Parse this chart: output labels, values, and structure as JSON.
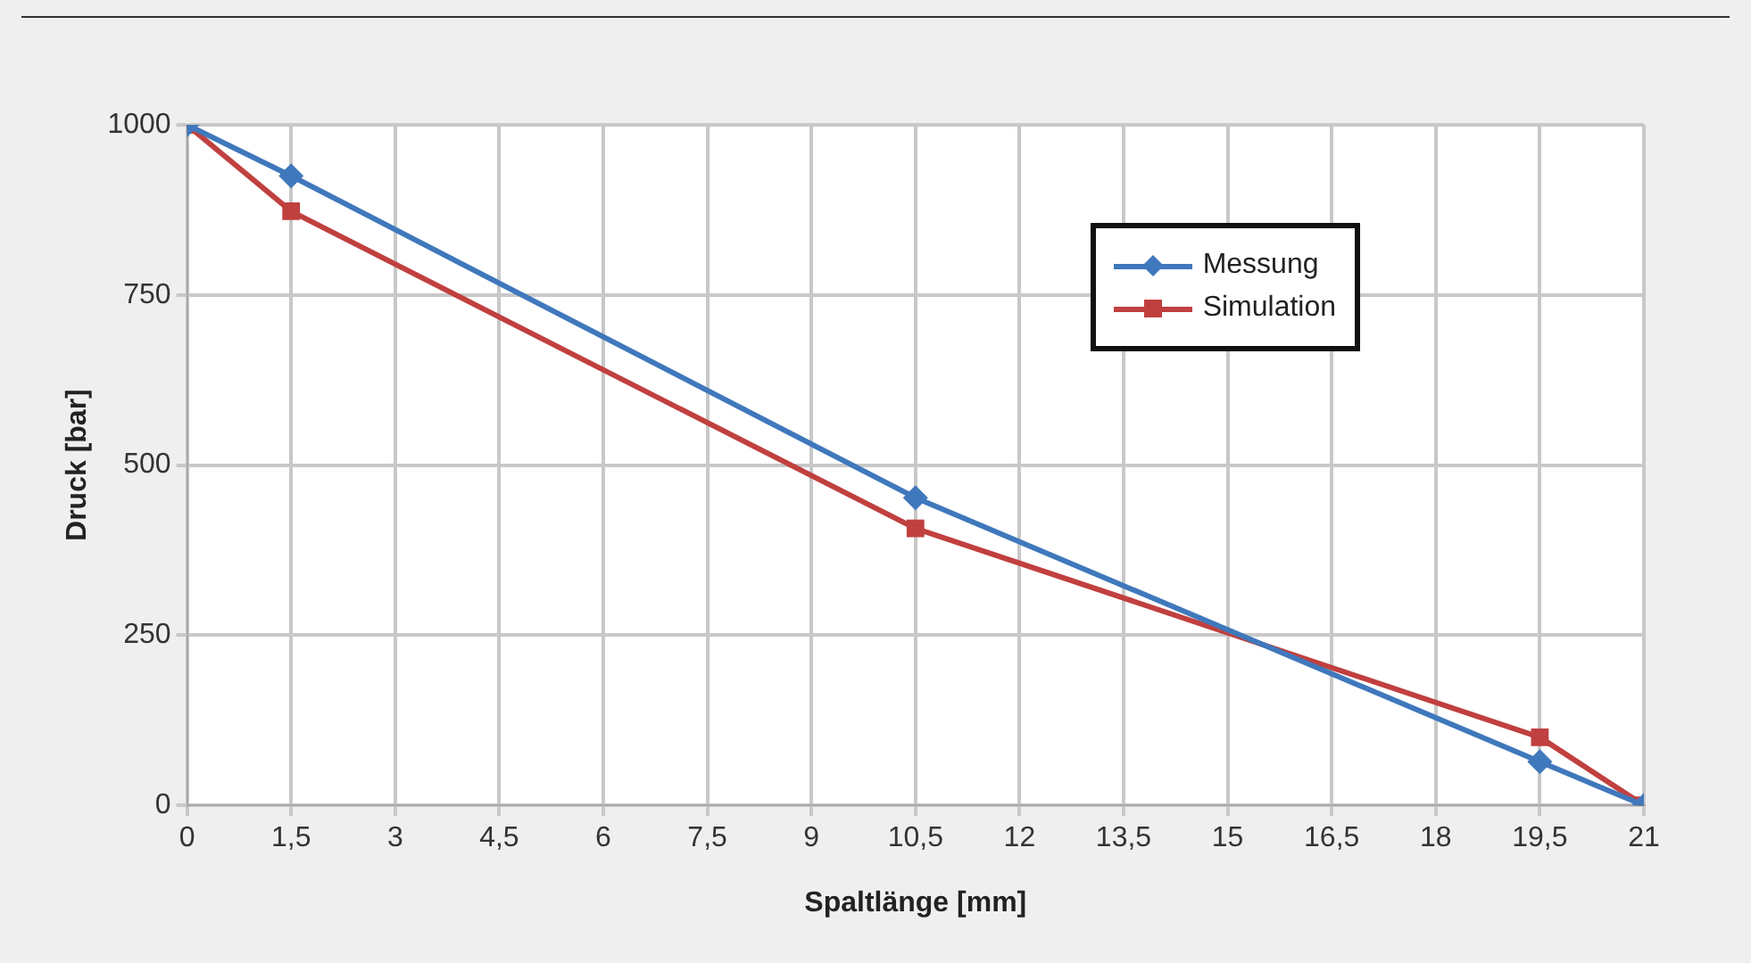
{
  "chart_data": {
    "type": "line",
    "xlabel": "Spaltlänge [mm]",
    "ylabel": "Druck [bar]",
    "xlim": [
      0,
      21
    ],
    "xticks": [
      0,
      {
        "value": 1.5,
        "label": "1,5"
      },
      3,
      {
        "value": 4.5,
        "label": "4,5"
      },
      6,
      {
        "value": 7.5,
        "label": "7,5"
      },
      9,
      {
        "value": 10.5,
        "label": "10,5"
      },
      12,
      {
        "value": 13.5,
        "label": "13,5"
      },
      15,
      {
        "value": 16.5,
        "label": "16,5"
      },
      18,
      {
        "value": 19.5,
        "label": "19,5"
      },
      21
    ],
    "ylim": [
      0,
      1000
    ],
    "yticks": [
      0,
      250,
      500,
      750,
      1000
    ],
    "grid": true,
    "legend": "top right",
    "series": [
      {
        "name": "Messung",
        "color": "#3f78bc",
        "marker": "diamond",
        "x": [
          0,
          1.5,
          10.5,
          19.5,
          21
        ],
        "values": [
          1000,
          925,
          452,
          64,
          0
        ]
      },
      {
        "name": "Simulation",
        "color": "#c0403f",
        "marker": "square",
        "x": [
          0,
          1.5,
          10.5,
          19.5,
          21
        ],
        "values": [
          1000,
          873,
          407,
          100,
          0
        ]
      }
    ]
  }
}
